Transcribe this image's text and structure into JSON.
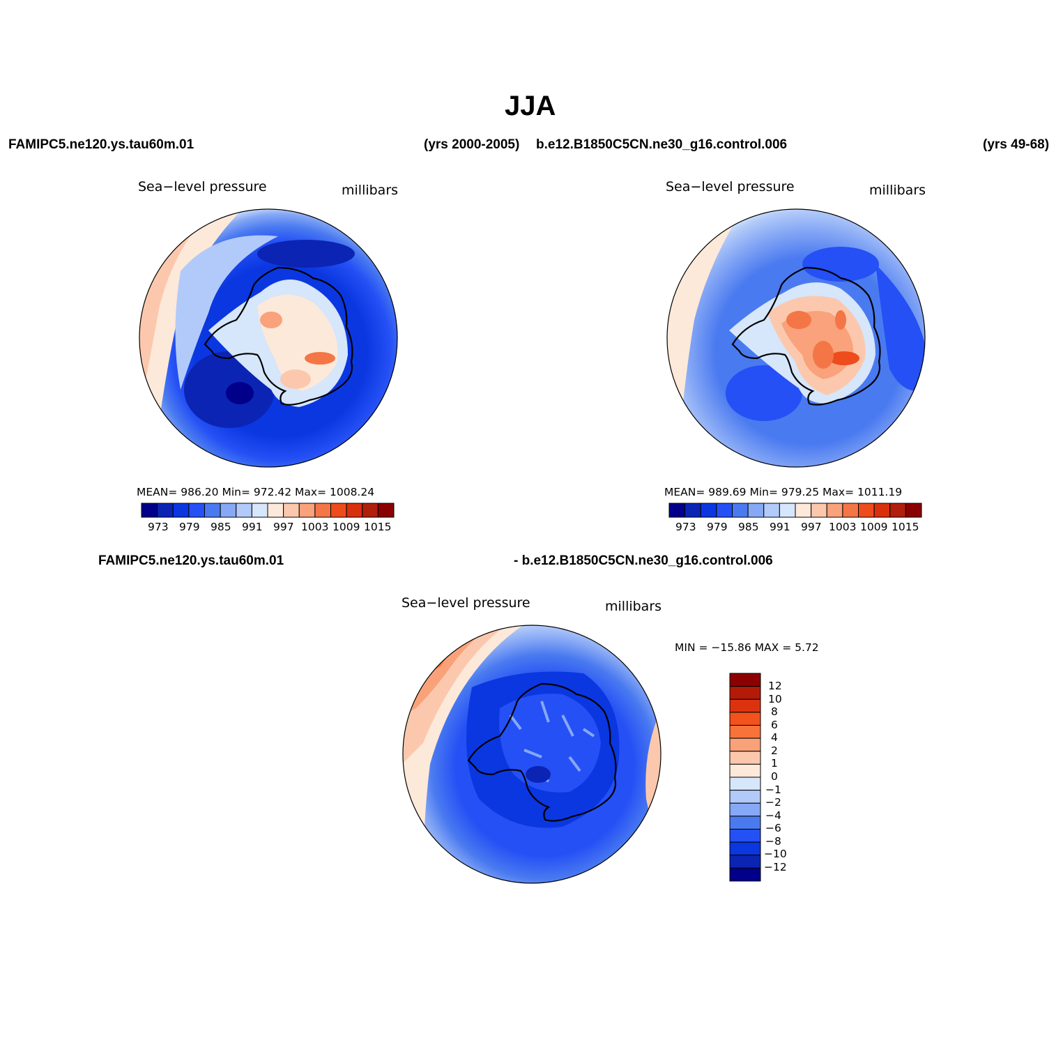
{
  "figure_title": "JJA",
  "header": {
    "case1": "FAMIPC5.ne120.ys.tau60m.01",
    "case1_years": "(yrs 2000-2005)",
    "case2": "b.e12.B1850C5CN.ne30_g16.control.006",
    "case2_years": "(yrs 49-68)"
  },
  "diff_header": {
    "left": "FAMIPC5.ne120.ys.tau60m.01",
    "right": "- b.e12.B1850C5CN.ne30_g16.control.006"
  },
  "panels": [
    {
      "variable": "Sea−level pressure",
      "units": "millibars",
      "stats": "MEAN=  986.20    Min=  972.42    Max=  1008.24",
      "colorbar_ticks": [
        "973",
        "979",
        "985",
        "991",
        "997",
        "1003",
        "1009",
        "1015"
      ]
    },
    {
      "variable": "Sea−level pressure",
      "units": "millibars",
      "stats": "MEAN=  989.69    Min=  979.25    Max=  1011.19",
      "colorbar_ticks": [
        "973",
        "979",
        "985",
        "991",
        "997",
        "1003",
        "1009",
        "1015"
      ]
    },
    {
      "variable": "Sea−level pressure",
      "units": "millibars",
      "stats": "MIN  =  −15.86  MAX  =      5.72",
      "colorbar_ticks": [
        "12",
        "10",
        "8",
        "6",
        "4",
        "2",
        "1",
        "0",
        "−1",
        "−2",
        "−4",
        "−6",
        "−8",
        "−10",
        "−12"
      ]
    }
  ],
  "colors": {
    "abs_scale": [
      "#00008b",
      "#0b24b4",
      "#0a37e0",
      "#2450f5",
      "#4a7af0",
      "#86a8f5",
      "#b2caf9",
      "#d6e6fb",
      "#fde9d9",
      "#fcc8ad",
      "#f9a27b",
      "#f47647",
      "#ee4c1d",
      "#d9310c",
      "#b01e0c",
      "#8b0000"
    ],
    "diff_scale": [
      "#8b0000",
      "#b31a08",
      "#dc330e",
      "#f4521c",
      "#f7733a",
      "#f9a27a",
      "#fcc8ad",
      "#fde9d9",
      "#d6e6fb",
      "#b2caf9",
      "#86a8f5",
      "#4a7af0",
      "#2450f5",
      "#0a37e0",
      "#0b24b4",
      "#00008b"
    ],
    "coastline": "#000000"
  }
}
